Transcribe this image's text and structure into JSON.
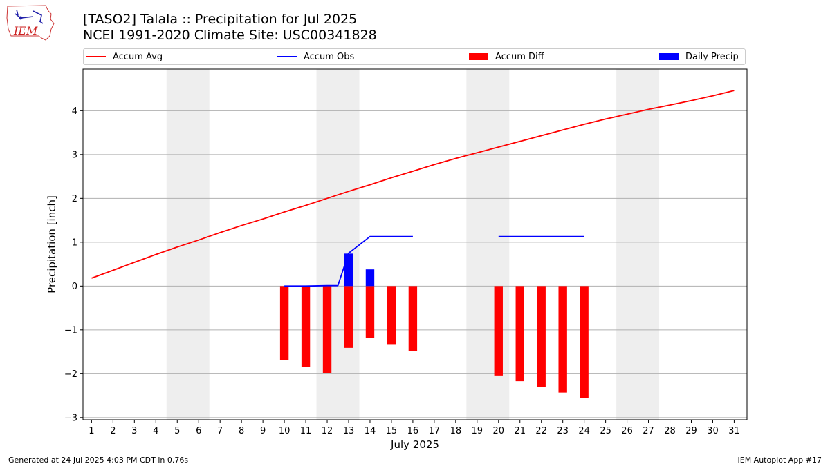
{
  "header": {
    "title_line1": "[TASO2] Talala :: Precipitation for Jul 2025",
    "title_line2": "NCEI 1991-2020 Climate Site: USC00341828",
    "logo_text": "IEM"
  },
  "legend": [
    {
      "label": "Accum Avg",
      "color": "#ff0000",
      "kind": "line"
    },
    {
      "label": "Accum Obs",
      "color": "#0000ff",
      "kind": "line"
    },
    {
      "label": "Accum Diff",
      "color": "#ff0000",
      "kind": "bar"
    },
    {
      "label": "Daily Precip",
      "color": "#0000ff",
      "kind": "bar"
    }
  ],
  "footer": {
    "left": "Generated at 24 Jul 2025 4:03 PM CDT in 0.76s",
    "right": "IEM Autoplot App #17"
  },
  "chart_data": {
    "type": "bar",
    "title": "[TASO2] Talala :: Precipitation for Jul 2025",
    "subtitle": "NCEI 1991-2020 Climate Site: USC00341828",
    "xlabel": "July 2025",
    "ylabel": "Precipitation [inch]",
    "xlim": [
      0.6,
      31.6
    ],
    "ylim": [
      -3.05,
      4.95
    ],
    "x_ticks": [
      1,
      2,
      3,
      4,
      5,
      6,
      7,
      8,
      9,
      10,
      11,
      12,
      13,
      14,
      15,
      16,
      17,
      18,
      19,
      20,
      21,
      22,
      23,
      24,
      25,
      26,
      27,
      28,
      29,
      30,
      31
    ],
    "y_ticks": [
      -3,
      -2,
      -1,
      0,
      1,
      2,
      3,
      4
    ],
    "grid": "horizontal",
    "legend_position": "top",
    "weekend_shading": [
      [
        4.5,
        6.5
      ],
      [
        11.5,
        13.5
      ],
      [
        18.5,
        20.5
      ],
      [
        25.5,
        27.5
      ]
    ],
    "series": [
      {
        "name": "Accum Avg",
        "type": "line",
        "color": "#ff0000",
        "x": [
          1,
          2,
          3,
          4,
          5,
          6,
          7,
          8,
          9,
          10,
          11,
          12,
          13,
          14,
          15,
          16,
          17,
          18,
          19,
          20,
          21,
          22,
          23,
          24,
          25,
          26,
          27,
          28,
          29,
          30,
          31
        ],
        "values": [
          0.18,
          0.36,
          0.54,
          0.72,
          0.89,
          1.05,
          1.22,
          1.38,
          1.53,
          1.69,
          1.84,
          2.0,
          2.16,
          2.31,
          2.47,
          2.62,
          2.77,
          2.91,
          3.04,
          3.17,
          3.3,
          3.43,
          3.56,
          3.69,
          3.81,
          3.92,
          4.03,
          4.13,
          4.23,
          4.34,
          4.46
        ]
      },
      {
        "name": "Accum Obs",
        "type": "line",
        "color": "#0000ff",
        "segments": [
          {
            "x": [
              10,
              11,
              12,
              12.5
            ],
            "values": [
              0.0,
              0.0,
              0.01,
              0.01
            ]
          },
          {
            "x": [
              12.5,
              13,
              14,
              15,
              16
            ],
            "values": [
              0.01,
              0.75,
              1.13,
              1.13,
              1.13
            ]
          },
          {
            "x": [
              20,
              21,
              22,
              23,
              24
            ],
            "values": [
              1.13,
              1.13,
              1.13,
              1.13,
              1.13
            ]
          }
        ]
      },
      {
        "name": "Accum Diff",
        "type": "bar",
        "color": "#ff0000",
        "x": [
          10,
          11,
          12,
          13,
          14,
          15,
          16,
          20,
          21,
          22,
          23,
          24
        ],
        "values": [
          -1.69,
          -1.84,
          -1.99,
          -1.41,
          -1.18,
          -1.34,
          -1.49,
          -2.04,
          -2.17,
          -2.3,
          -2.43,
          -2.56
        ]
      },
      {
        "name": "Daily Precip",
        "type": "bar",
        "color": "#0000ff",
        "x": [
          13,
          14
        ],
        "values": [
          0.74,
          0.38
        ]
      }
    ]
  }
}
